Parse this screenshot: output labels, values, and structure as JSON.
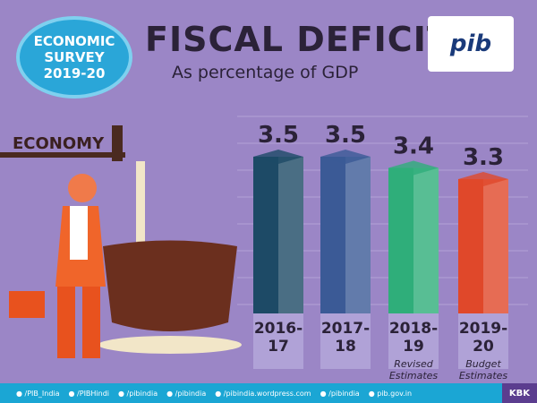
{
  "badge": {
    "line1": "ECONOMIC",
    "line2": "SURVEY",
    "line3": "2019-20"
  },
  "logo_text": "pib",
  "economy_label": "ECONOMY",
  "chart_data": {
    "type": "bar",
    "title": "FISCAL DEFICIT",
    "subtitle": "As percentage of GDP",
    "categories": [
      "2016-17",
      "2017-18",
      "2018-19",
      "2019-20"
    ],
    "category_lines": [
      [
        "2016-",
        "17"
      ],
      [
        "2017-",
        "18"
      ],
      [
        "2018-",
        "19"
      ],
      [
        "2019-",
        "20"
      ]
    ],
    "notes": [
      "",
      "",
      "Revised Estimates",
      "Budget Estimates"
    ],
    "values": [
      3.5,
      3.5,
      3.4,
      3.3
    ],
    "data_labels": [
      "3.5",
      "3.5",
      "3.4",
      "3.3"
    ],
    "colors": [
      "#1d4a66",
      "#3b5a96",
      "#2fae7a",
      "#e0482a"
    ],
    "grid": true
  },
  "footer": {
    "items": [
      "/PIB_India",
      "/PIBHindi",
      "/pibindia",
      "/pibindia",
      "/pibindia.wordpress.com",
      "/pibindia",
      "pib.gov.in"
    ],
    "credit": "KBK"
  }
}
